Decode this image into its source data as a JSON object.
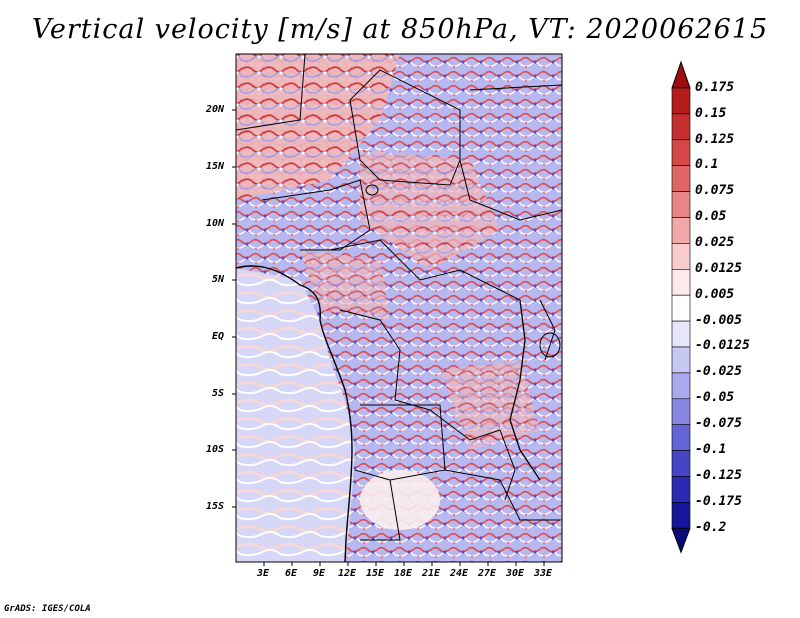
{
  "title": "Vertical velocity [m/s] at 850hPa, VT: 2020062615",
  "footer": "GrADS: IGES/COLA",
  "lat_labels": [
    "20N",
    "15N",
    "10N",
    "5N",
    "EQ",
    "5S",
    "10S",
    "15S"
  ],
  "lon_labels": [
    "3E",
    "6E",
    "9E",
    "12E",
    "15E",
    "18E",
    "21E",
    "24E",
    "27E",
    "30E",
    "33E"
  ],
  "colorbar": {
    "labels": [
      "0.175",
      "0.15",
      "0.125",
      "0.1",
      "0.075",
      "0.05",
      "0.025",
      "0.0125",
      "0.005",
      "-0.005",
      "-0.0125",
      "-0.025",
      "-0.05",
      "-0.075",
      "-0.1",
      "-0.125",
      "-0.175",
      "-0.2"
    ],
    "colors": [
      "#9e0d0d",
      "#b51c1c",
      "#c62f2f",
      "#d44848",
      "#df6666",
      "#e88686",
      "#f1a8a8",
      "#f8cccc",
      "#fdeaea",
      "#ffffff",
      "#e6e6fa",
      "#c8c8f5",
      "#a9a9ee",
      "#8787e2",
      "#6464d6",
      "#4545c6",
      "#2a2ab2",
      "#16169a",
      "#0a0a7a"
    ]
  }
}
